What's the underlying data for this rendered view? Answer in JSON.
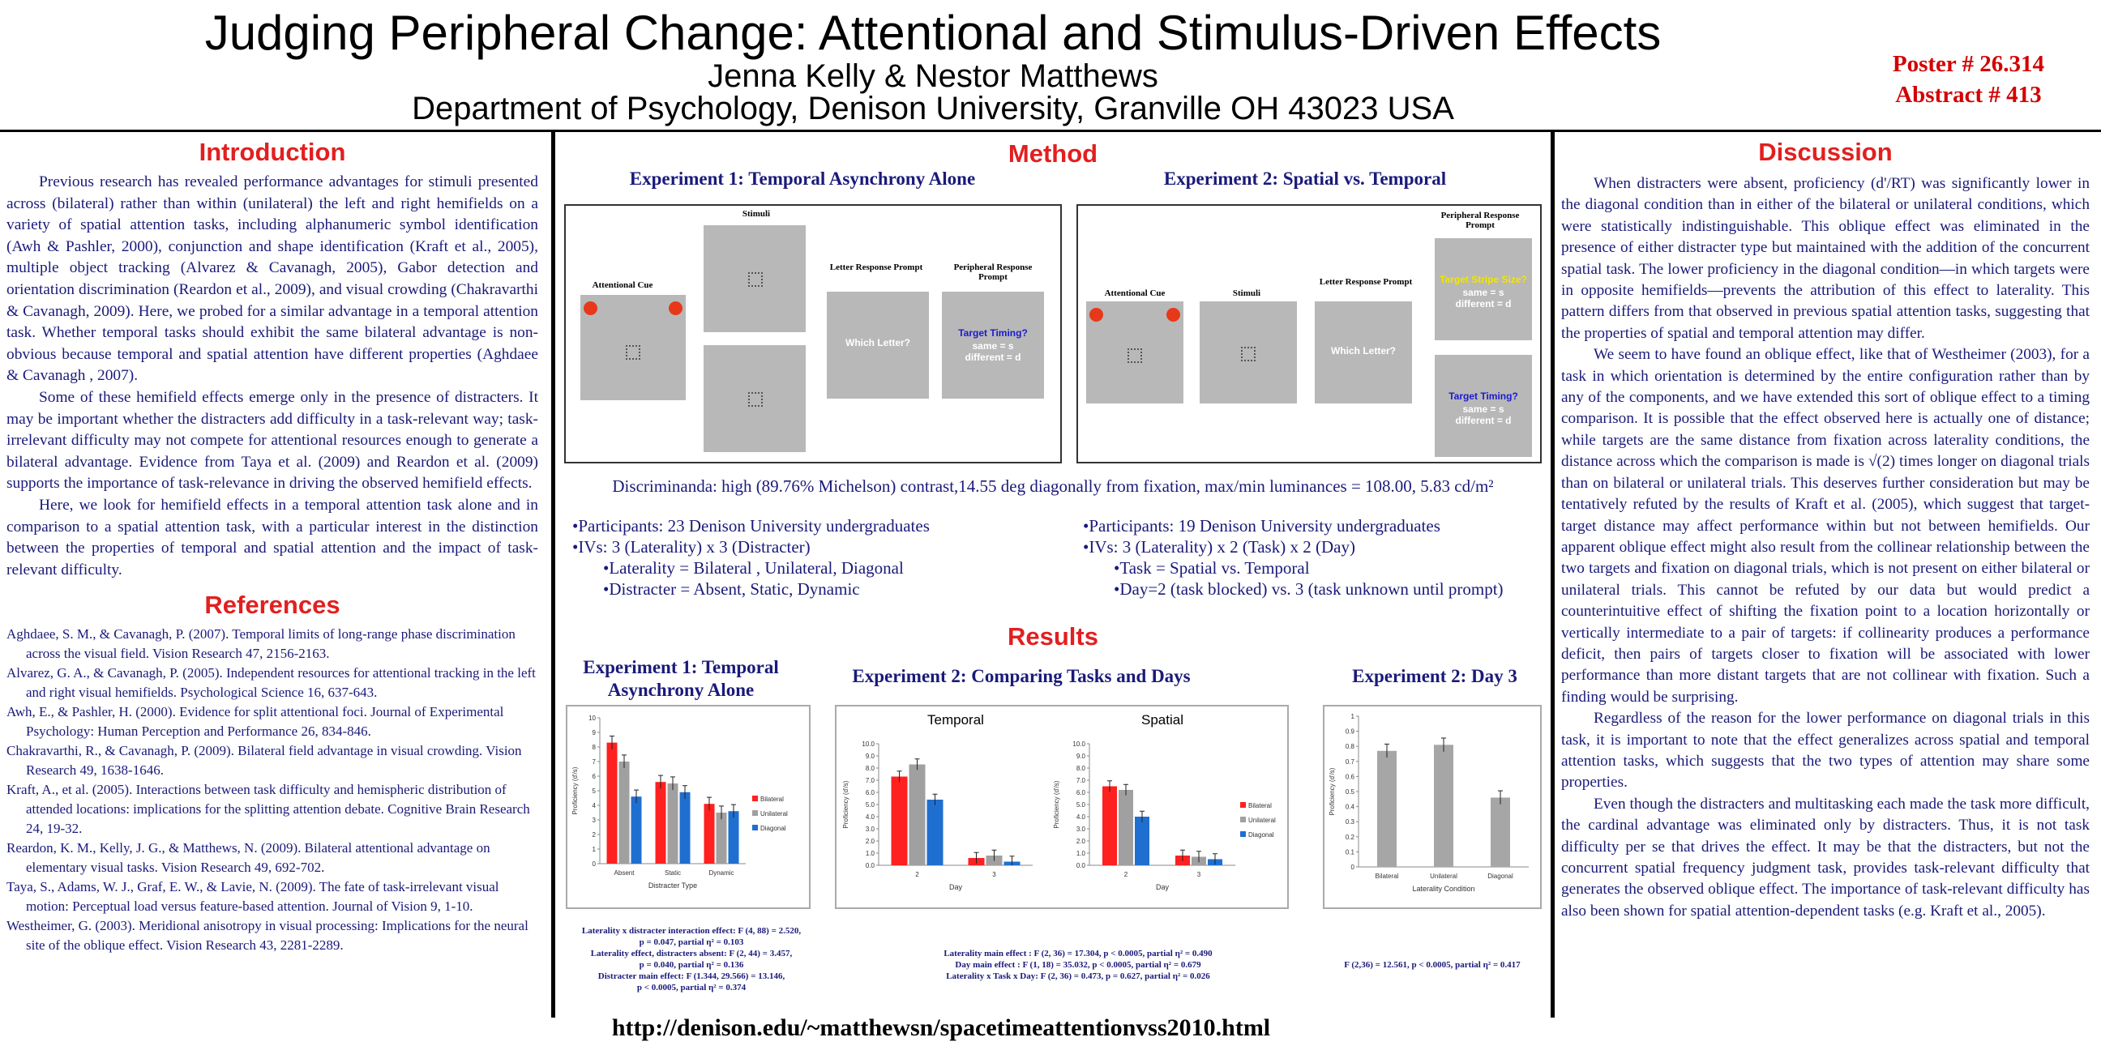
{
  "header": {
    "title": "Judging Peripheral Change: Attentional and Stimulus-Driven Effects",
    "authors": "Jenna Kelly & Nestor Matthews",
    "department": "Department of Psychology, Denison University, Granville OH 43023 USA",
    "poster_number": "Poster # 26.314",
    "abstract_number": "Abstract # 413"
  },
  "introduction": {
    "heading": "Introduction",
    "paragraphs": [
      "Previous research has revealed performance advantages for stimuli presented across (bilateral) rather than within (unilateral) the left and right hemifields on a variety of spatial attention tasks, including alphanumeric symbol identification (Awh & Pashler, 2000), conjunction and shape identification (Kraft et al., 2005), multiple object tracking (Alvarez & Cavanagh, 2005), Gabor detection and orientation discrimination (Reardon et al., 2009), and visual crowding (Chakravarthi & Cavanagh, 2009). Here, we probed for a similar advantage in a temporal attention task. Whether temporal tasks should exhibit the same bilateral advantage is non-obvious because temporal and spatial attention have different properties (Aghdaee & Cavanagh , 2007).",
      "Some of these hemifield effects emerge only in the presence of distracters. It may be important whether the distracters add difficulty in a task-relevant way; task-irrelevant difficulty may not compete for attentional resources enough to generate a bilateral advantage. Evidence from Taya et al. (2009) and Reardon et al. (2009) supports the importance of task-relevance in driving the observed hemifield effects.",
      "Here, we look for hemifield effects in a temporal attention task alone and in comparison to a spatial attention task, with a particular interest in the distinction between the properties of  temporal and spatial attention and the impact of task-relevant difficulty."
    ]
  },
  "references": {
    "heading": "References",
    "items": [
      "Aghdaee, S. M., & Cavanagh, P. (2007). Temporal limits of long-range phase discrimination across the visual field. Vision Research 47, 2156-2163.",
      "Alvarez, G. A., & Cavanagh, P. (2005). Independent resources for attentional tracking in the left and right visual hemifields. Psychological Science 16, 637-643.",
      "Awh, E., & Pashler, H. (2000). Evidence for split attentional foci. Journal of Experimental Psychology: Human Perception and Performance 26, 834-846.",
      "Chakravarthi, R., & Cavanagh, P. (2009). Bilateral field advantage in visual crowding. Vision Research 49, 1638-1646.",
      "Kraft, A., et al. (2005). Interactions between task difficulty and hemispheric distribution of attended locations: implications for the splitting attention debate. Cognitive Brain Research 24, 19-32.",
      "Reardon, K. M., Kelly, J. G., & Matthews, N. (2009). Bilateral attentional advantage on elementary visual tasks. Vision Research 49, 692-702.",
      "Taya, S., Adams, W. J., Graf, E. W., & Lavie, N. (2009). The fate of task-irrelevant visual motion: Perceptual load versus feature-based attention. Journal of Vision 9, 1-10.",
      "Westheimer, G. (2003). Meridional anisotropy in visual processing: Implications for the neural site of the oblique effect. Vision Research 43, 2281-2289."
    ]
  },
  "method": {
    "heading": "Method",
    "exp1_title": "Experiment 1: Temporal Asynchrony Alone",
    "exp2_title": "Experiment 2: Spatial vs. Temporal",
    "stimuli": {
      "stimuli_label": "Stimuli",
      "attentional_cue_label": "Attentional Cue",
      "letter_prompt_label": "Letter Response Prompt",
      "peripheral_prompt_label": "Peripheral Response Prompt",
      "which_letter": "Which Letter?",
      "target_timing": "Target Timing?",
      "target_stripe": "Target Stripe Size?",
      "same_line": "same = s",
      "different_line": "different  = d"
    },
    "discriminanda": "Discriminanda: high (89.76% Michelson) contrast,14.55 deg diagonally from fixation, max/min luminances = 108.00, 5.83 cd/m²",
    "exp1_bullets": [
      "•Participants: 23 Denison University undergraduates",
      "•IVs: 3 (Laterality) x 3  (Distracter)",
      "•Laterality = Bilateral , Unilateral, Diagonal",
      "•Distracter = Absent, Static, Dynamic"
    ],
    "exp2_bullets": [
      "•Participants: 19 Denison University undergraduates",
      "•IVs: 3 (Laterality) x 2  (Task) x 2 (Day)",
      "•Task = Spatial vs. Temporal",
      "•Day=2 (task blocked) vs. 3 (task unknown until prompt)"
    ]
  },
  "results": {
    "heading": "Results",
    "exp1_title": "Experiment 1: Temporal Asynchrony Alone",
    "exp2_title": "Experiment 2: Comparing Tasks and Days",
    "exp3_title": "Experiment 2: Day 3",
    "exp1_stats": [
      "Laterality x distracter interaction effect: F (4, 88) = 2.520,",
      "p = 0.047, partial η² = 0.103",
      "Laterality effect, distracters absent: F (2, 44) = 3.457,",
      "p = 0.040, partial η² = 0.136",
      "Distracter main effect: F (1.344, 29.566) = 13.146,",
      "p < 0.0005, partial η² = 0.374"
    ],
    "exp2_stats": [
      "Laterality main effect : F (2, 36) = 17.304, p < 0.0005, partial η² = 0.490",
      "Day main effect : F (1, 18) = 35.032, p < 0.0005, partial η² = 0.679",
      "Laterality x Task x Day: F (2, 36) = 0.473, p = 0.627, partial η² = 0.026"
    ],
    "exp3_stats": "F (2,36) = 12.561, p < 0.0005, partial η² = 0.417"
  },
  "chart_data": [
    {
      "type": "bar",
      "title": "",
      "xlabel": "Distracter Type",
      "ylabel": "Proficiency (d'/s)",
      "ylim": [
        0,
        10
      ],
      "yticks": [
        "0",
        "1",
        "2",
        "3",
        "4",
        "5",
        "6",
        "7",
        "8",
        "9",
        "10"
      ],
      "categories": [
        "Absent",
        "Static",
        "Dynamic"
      ],
      "series": [
        {
          "name": "Bilateral",
          "color": "#ff2020",
          "values": [
            8.3,
            5.6,
            4.1
          ]
        },
        {
          "name": "Unilateral",
          "color": "#a0a0a0",
          "values": [
            7.0,
            5.5,
            3.5
          ]
        },
        {
          "name": "Diagonal",
          "color": "#1f6fd0",
          "values": [
            4.6,
            4.9,
            3.6
          ]
        }
      ]
    },
    {
      "type": "bar",
      "title": "Temporal",
      "xlabel": "Day",
      "ylabel": "Proficiency (d'/s)",
      "ylim": [
        0,
        10
      ],
      "yticks": [
        "0.0",
        "1.0",
        "2.0",
        "3.0",
        "4.0",
        "5.0",
        "6.0",
        "7.0",
        "8.0",
        "9.0",
        "10.0"
      ],
      "categories": [
        "2",
        "3"
      ],
      "series": [
        {
          "name": "Bilateral",
          "color": "#ff2020",
          "values": [
            7.3,
            0.6
          ]
        },
        {
          "name": "Unilateral",
          "color": "#a0a0a0",
          "values": [
            8.3,
            0.8
          ]
        },
        {
          "name": "Diagonal",
          "color": "#1f6fd0",
          "values": [
            5.4,
            0.3
          ]
        }
      ]
    },
    {
      "type": "bar",
      "title": "Spatial",
      "xlabel": "Day",
      "ylabel": "Proficiency (d'/s)",
      "ylim": [
        0,
        10
      ],
      "yticks": [
        "0.0",
        "1.0",
        "2.0",
        "3.0",
        "4.0",
        "5.0",
        "6.0",
        "7.0",
        "8.0",
        "9.0",
        "10.0"
      ],
      "categories": [
        "2",
        "3"
      ],
      "series": [
        {
          "name": "Bilateral",
          "color": "#ff2020",
          "values": [
            6.5,
            0.8
          ]
        },
        {
          "name": "Unilateral",
          "color": "#a0a0a0",
          "values": [
            6.2,
            0.7
          ]
        },
        {
          "name": "Diagonal",
          "color": "#1f6fd0",
          "values": [
            4.0,
            0.5
          ]
        }
      ]
    },
    {
      "type": "bar",
      "title": "",
      "xlabel": "Laterality Condition",
      "ylabel": "Proficiency (d'/s)",
      "ylim": [
        0,
        1
      ],
      "yticks": [
        "0",
        "0.1",
        "0.2",
        "0.3",
        "0.4",
        "0.5",
        "0.6",
        "0.7",
        "0.8",
        "0.9",
        "1"
      ],
      "categories": [
        "Bilateral",
        "Unilateral",
        "Diagonal"
      ],
      "series": [
        {
          "name": "Proficiency",
          "color": "#a6a6a6",
          "values": [
            0.77,
            0.81,
            0.46
          ]
        }
      ]
    }
  ],
  "discussion": {
    "heading": "Discussion",
    "paragraphs": [
      "When distracters were absent, proficiency (d'/RT) was significantly lower in the diagonal condition than in either of the bilateral or unilateral conditions, which were statistically indistinguishable. This oblique effect was eliminated in the presence of either distracter type but maintained with the addition of the concurrent spatial task. The lower proficiency in the diagonal condition—in which targets were in opposite hemifields—prevents the attribution of this effect to laterality. This pattern differs from that observed in previous spatial attention tasks, suggesting that the properties of spatial and temporal attention may differ.",
      "We seem to have found an oblique effect, like that of Westheimer (2003), for a task in which orientation is determined by the entire configuration rather than by any of the components, and we have extended this sort of oblique effect to a timing comparison. It is possible that the effect observed here is actually one of distance; while targets are the same distance from fixation across laterality conditions, the distance across which the comparison is made is √(2) times longer on diagonal trials than on bilateral or unilateral trials. This deserves further consideration but may be tentatively refuted by the results of Kraft et al. (2005), which suggest that target-target distance may affect performance within but not between hemifields. Our apparent oblique effect might also result from the collinear relationship between the two targets and fixation on diagonal trials, which is not present on either bilateral or unilateral trials. This cannot be refuted by our data but would predict a counterintuitive effect of shifting the fixation point to a location horizontally or vertically intermediate to a pair of targets: if collinearity produces a performance deficit, then pairs of targets closer to fixation will be associated with lower performance than more distant targets that are not collinear with fixation. Such a finding would be surprising.",
      "Regardless of the reason for the lower performance on diagonal trials in this task, it is important to note that the effect generalizes across spatial and temporal attention tasks, which suggests that the two types of attention may share some properties.",
      "Even though the distracters and multitasking each made the task more difficult, the cardinal advantage was eliminated only by distracters. Thus, it is not task difficulty per se that drives the effect. It may be that the distracters, but not the concurrent spatial frequency judgment task, provides task-relevant difficulty that generates the observed oblique effect.  The importance of task-relevant difficulty has also been shown for spatial attention-dependent tasks (e.g. Kraft et al., 2005)."
    ]
  },
  "footer": {
    "url": "http://denison.edu/~matthewsn/spacetimeattentionvss2010.html"
  }
}
